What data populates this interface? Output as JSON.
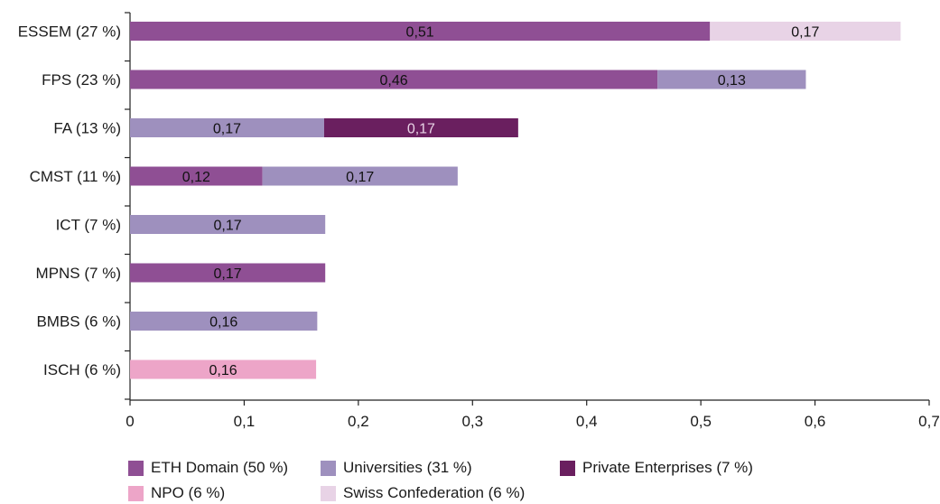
{
  "chart_data": {
    "type": "bar",
    "orientation": "horizontal",
    "stacked": true,
    "title": "",
    "xlabel": "",
    "ylabel": "",
    "xlim": [
      0,
      0.7
    ],
    "x_ticks": [
      0,
      0.1,
      0.2,
      0.3,
      0.4,
      0.5,
      0.6,
      0.7
    ],
    "x_tick_labels": [
      "0",
      "0,1",
      "0,2",
      "0,3",
      "0,4",
      "0,5",
      "0,6",
      "0,7"
    ],
    "grid": false,
    "legend_position": "bottom",
    "categories": [
      "ESSEM (27 %)",
      "FPS (23 %)",
      "FA (13 %)",
      "CMST (11 %)",
      "ICT (7 %)",
      "MPNS (7 %)",
      "BMBS (6 %)",
      "ISCH (6 %)"
    ],
    "series": [
      {
        "name": "ETH Domain (50 %)",
        "color": "#8f4f94"
      },
      {
        "name": "Universities (31 %)",
        "color": "#9e90be"
      },
      {
        "name": "Private Enterprises (7 %)",
        "color": "#6a1f5f"
      },
      {
        "name": "NPO (6 %)",
        "color": "#eda5c8"
      },
      {
        "name": "Swiss Confederation (6 %)",
        "color": "#e8d3e6"
      }
    ],
    "bars": [
      {
        "category": "ESSEM (27 %)",
        "segments": [
          {
            "series": "ETH Domain (50 %)",
            "value": 0.508,
            "label": "0,51"
          },
          {
            "series": "Swiss Confederation (6 %)",
            "value": 0.167,
            "label": "0,17"
          }
        ]
      },
      {
        "category": "FPS (23 %)",
        "segments": [
          {
            "series": "ETH Domain (50 %)",
            "value": 0.462,
            "label": "0,46"
          },
          {
            "series": "Universities (31 %)",
            "value": 0.13,
            "label": "0,13"
          }
        ]
      },
      {
        "category": "FA (13 %)",
        "segments": [
          {
            "series": "Universities (31 %)",
            "value": 0.17,
            "label": "0,17"
          },
          {
            "series": "Private Enterprises (7 %)",
            "value": 0.17,
            "label": "0,17"
          }
        ]
      },
      {
        "category": "CMST (11 %)",
        "segments": [
          {
            "series": "ETH Domain (50 %)",
            "value": 0.116,
            "label": "0,12"
          },
          {
            "series": "Universities (31 %)",
            "value": 0.171,
            "label": "0,17"
          }
        ]
      },
      {
        "category": "ICT (7 %)",
        "segments": [
          {
            "series": "Universities (31 %)",
            "value": 0.171,
            "label": "0,17"
          }
        ]
      },
      {
        "category": "MPNS (7 %)",
        "segments": [
          {
            "series": "ETH Domain (50 %)",
            "value": 0.171,
            "label": "0,17"
          }
        ]
      },
      {
        "category": "BMBS (6 %)",
        "segments": [
          {
            "series": "Universities (31 %)",
            "value": 0.164,
            "label": "0,16"
          }
        ]
      },
      {
        "category": "ISCH (6 %)",
        "segments": [
          {
            "series": "NPO (6 %)",
            "value": 0.163,
            "label": "0,16"
          }
        ]
      }
    ]
  }
}
